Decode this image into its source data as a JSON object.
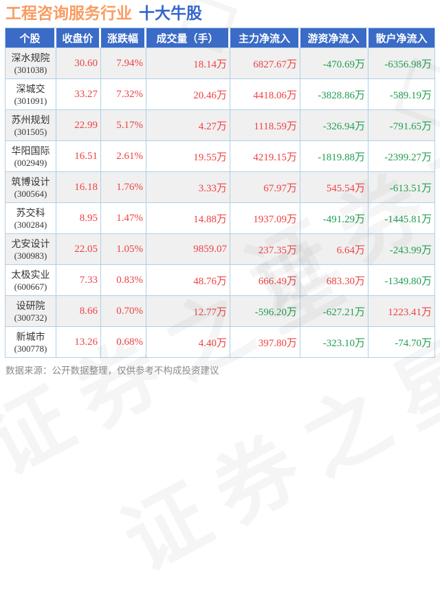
{
  "title": {
    "industry": "工程咨询服务行业",
    "topic": "十大牛股"
  },
  "footer": {
    "note": "数据来源：公开数据整理，仅供参考不构成投资建议"
  },
  "watermark": {
    "text": "证券之星"
  },
  "colors": {
    "up": "#f04141",
    "down": "#1f9d4f",
    "header_bg": "#3a6bc7",
    "title_industry": "#f99c61",
    "title_topic": "#3366cc",
    "border": "#aecfe8",
    "row_alt_bg": "#f0f0f0"
  },
  "table": {
    "headers": [
      "个股",
      "收盘价",
      "涨跌幅",
      "成交量（手）",
      "主力净流入",
      "游资净流入",
      "散户净流入"
    ],
    "rows": [
      {
        "name": "深水规院",
        "code": "(301038)",
        "close": "30.60",
        "change": "7.94%",
        "volume": "18.14万",
        "main_inflow": "6827.67万",
        "hot_money_inflow": "-470.69万",
        "retail_inflow": "-6356.98万"
      },
      {
        "name": "深城交",
        "code": "(301091)",
        "close": "33.27",
        "change": "7.32%",
        "volume": "20.46万",
        "main_inflow": "4418.06万",
        "hot_money_inflow": "-3828.86万",
        "retail_inflow": "-589.19万"
      },
      {
        "name": "苏州规划",
        "code": "(301505)",
        "close": "22.99",
        "change": "5.17%",
        "volume": "4.27万",
        "main_inflow": "1118.59万",
        "hot_money_inflow": "-326.94万",
        "retail_inflow": "-791.65万"
      },
      {
        "name": "华阳国际",
        "code": "(002949)",
        "close": "16.51",
        "change": "2.61%",
        "volume": "19.55万",
        "main_inflow": "4219.15万",
        "hot_money_inflow": "-1819.88万",
        "retail_inflow": "-2399.27万"
      },
      {
        "name": "筑博设计",
        "code": "(300564)",
        "close": "16.18",
        "change": "1.76%",
        "volume": "3.33万",
        "main_inflow": "67.97万",
        "hot_money_inflow": "545.54万",
        "retail_inflow": "-613.51万"
      },
      {
        "name": "苏交科",
        "code": "(300284)",
        "close": "8.95",
        "change": "1.47%",
        "volume": "14.88万",
        "main_inflow": "1937.09万",
        "hot_money_inflow": "-491.29万",
        "retail_inflow": "-1445.81万"
      },
      {
        "name": "尤安设计",
        "code": "(300983)",
        "close": "22.05",
        "change": "1.05%",
        "volume": "9859.07",
        "main_inflow": "237.35万",
        "hot_money_inflow": "6.64万",
        "retail_inflow": "-243.99万"
      },
      {
        "name": "太极实业",
        "code": "(600667)",
        "close": "7.33",
        "change": "0.83%",
        "volume": "48.76万",
        "main_inflow": "666.49万",
        "hot_money_inflow": "683.30万",
        "retail_inflow": "-1349.80万"
      },
      {
        "name": "设研院",
        "code": "(300732)",
        "close": "8.66",
        "change": "0.70%",
        "volume": "12.77万",
        "main_inflow": "-596.20万",
        "hot_money_inflow": "-627.21万",
        "retail_inflow": "1223.41万"
      },
      {
        "name": "新城市",
        "code": "(300778)",
        "close": "13.26",
        "change": "0.68%",
        "volume": "4.40万",
        "main_inflow": "397.80万",
        "hot_money_inflow": "-323.10万",
        "retail_inflow": "-74.70万"
      }
    ]
  },
  "chart_data": {
    "type": "table",
    "title": "工程咨询服务行业 十大牛股",
    "columns": [
      "个股",
      "收盘价",
      "涨跌幅",
      "成交量（手）",
      "主力净流入",
      "游资净流入",
      "散户净流入"
    ],
    "rows": [
      [
        "深水规院(301038)",
        "30.60",
        "7.94%",
        "18.14万",
        "6827.67万",
        "-470.69万",
        "-6356.98万"
      ],
      [
        "深城交(301091)",
        "33.27",
        "7.32%",
        "20.46万",
        "4418.06万",
        "-3828.86万",
        "-589.19万"
      ],
      [
        "苏州规划(301505)",
        "22.99",
        "5.17%",
        "4.27万",
        "1118.59万",
        "-326.94万",
        "-791.65万"
      ],
      [
        "华阳国际(002949)",
        "16.51",
        "2.61%",
        "19.55万",
        "4219.15万",
        "-1819.88万",
        "-2399.27万"
      ],
      [
        "筑博设计(300564)",
        "16.18",
        "1.76%",
        "3.33万",
        "67.97万",
        "545.54万",
        "-613.51万"
      ],
      [
        "苏交科(300284)",
        "8.95",
        "1.47%",
        "14.88万",
        "1937.09万",
        "-491.29万",
        "-1445.81万"
      ],
      [
        "尤安设计(300983)",
        "22.05",
        "1.05%",
        "9859.07",
        "237.35万",
        "6.64万",
        "-243.99万"
      ],
      [
        "太极实业(600667)",
        "7.33",
        "0.83%",
        "48.76万",
        "666.49万",
        "683.30万",
        "-1349.80万"
      ],
      [
        "设研院(300732)",
        "8.66",
        "0.70%",
        "12.77万",
        "-596.20万",
        "-627.21万",
        "1223.41万"
      ],
      [
        "新城市(300778)",
        "13.26",
        "0.68%",
        "4.40万",
        "397.80万",
        "-323.10万",
        "-74.70万"
      ]
    ]
  }
}
